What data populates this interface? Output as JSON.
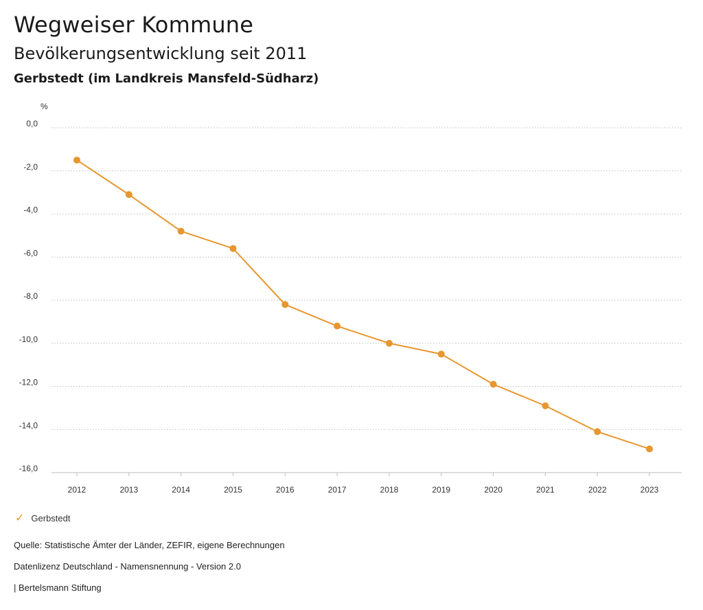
{
  "header": {
    "title": "Wegweiser Kommune",
    "subtitle": "Bevölkerungsentwicklung seit 2011",
    "region": "Gerbstedt (im Landkreis Mansfeld-Südharz)"
  },
  "chart_data": {
    "type": "line",
    "title": "Bevölkerungsentwicklung seit 2011",
    "subtitle": "Gerbstedt (im Landkreis Mansfeld-Südharz)",
    "ylabel": "%",
    "xlabel": "",
    "categories": [
      "2012",
      "2013",
      "2014",
      "2015",
      "2016",
      "2017",
      "2018",
      "2019",
      "2020",
      "2021",
      "2022",
      "2023"
    ],
    "series": [
      {
        "name": "Gerbstedt",
        "color": "#e8962e",
        "values": [
          -1.5,
          -3.1,
          -4.8,
          -5.6,
          -8.2,
          -9.2,
          -10.0,
          -10.5,
          -11.9,
          -12.9,
          -14.1,
          -14.9
        ]
      }
    ],
    "ylim": [
      -16,
      0
    ],
    "yticks": [
      "0,0",
      "-2,0",
      "-4,0",
      "-6,0",
      "-8,0",
      "-10,0",
      "-12,0",
      "-14,0",
      "-16,0"
    ],
    "ytick_values": [
      0,
      -2,
      -4,
      -6,
      -8,
      -10,
      -12,
      -14,
      -16
    ],
    "grid": true,
    "legend_position": "bottom-left"
  },
  "legend": {
    "icon": "check-icon",
    "label": "Gerbstedt"
  },
  "footer": {
    "source": "Quelle: Statistische Ämter der Länder, ZEFIR, eigene Berechnungen",
    "license": "Datenlizenz Deutschland - Namensnennung - Version 2.0",
    "credit": "| Bertelsmann Stiftung"
  }
}
